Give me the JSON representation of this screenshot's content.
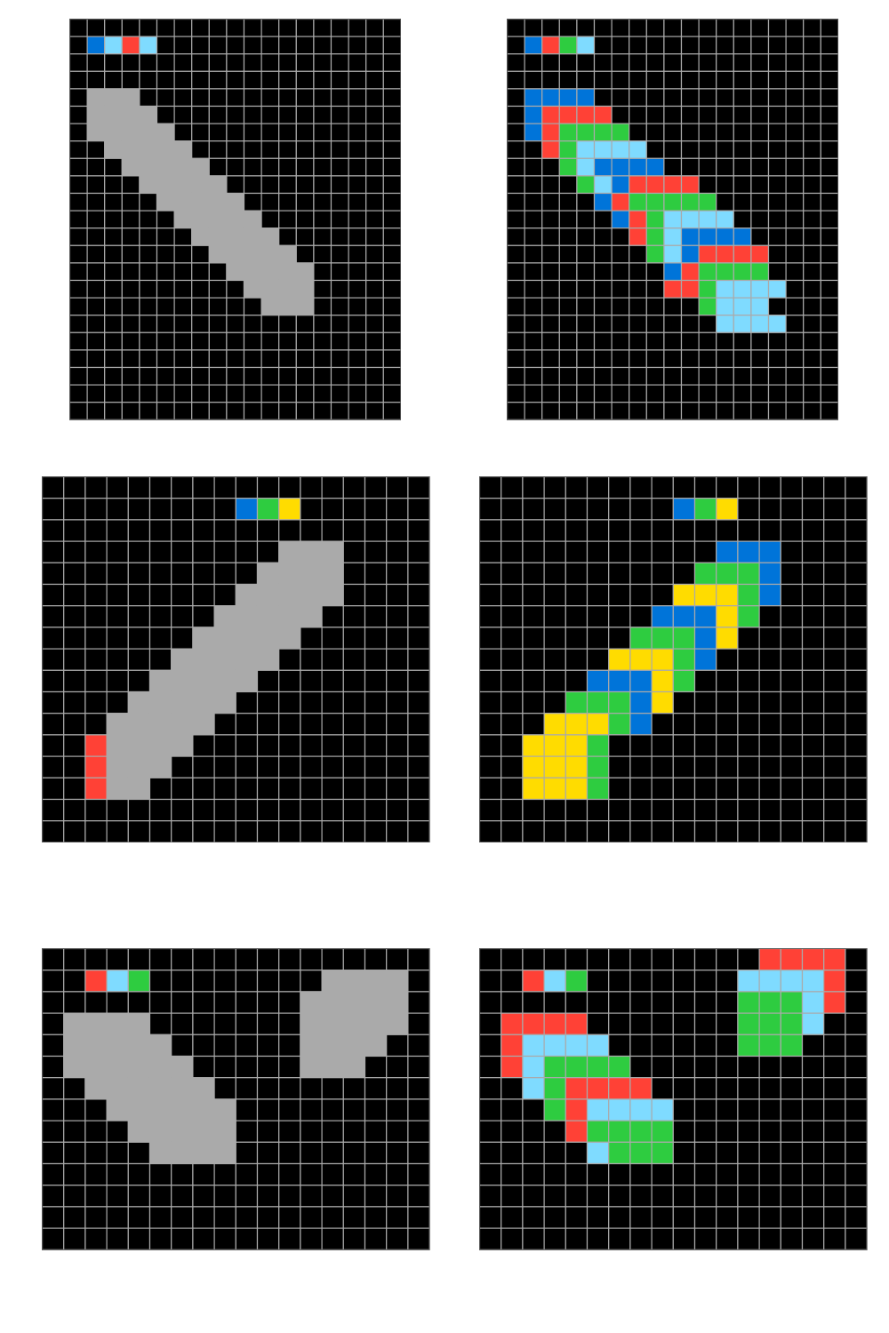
{
  "palette": {
    "0": "#000000",
    "1": "#0074d9",
    "2": "#ff4136",
    "3": "#2ecc40",
    "4": "#ffdc00",
    "5": "#aaaaaa",
    "6": "#f012be",
    "7": "#ff851b",
    "8": "#7fdbff",
    "9": "#870c25"
  },
  "grid_line_color": "#aaaaaa",
  "pairs": [
    {
      "input": {
        "rows": [
          "0000000000000000000",
          "0182800000000000000",
          "0000000000000000000",
          "0000000000000000000",
          "0555000000000000000",
          "0555500000000000000",
          "0555550000000000000",
          "0055555000000000000",
          "0005555500000000000",
          "0000555550000000000",
          "0000055555000000000",
          "0000005555500000000",
          "0000000555550000000",
          "0000000055555000000",
          "0000000005555500000",
          "0000000000555500000",
          "0000000000055500000",
          "0000000000000000000",
          "0000000000000000000",
          "0000000000000000000",
          "0000000000000000000",
          "0000000000000000000",
          "0000000000000000000"
        ]
      },
      "output": {
        "rows": [
          "0000000000000000000",
          "0123800000000000000",
          "0000000000000000000",
          "0000000000000000000",
          "0111100000000000000",
          "0122220000000000000",
          "0123333000000000000",
          "0023888800000000000",
          "0003811110000000000",
          "0000381222200000000",
          "0000012333330000000",
          "0000001238888000000",
          "0000000238111100000",
          "0000000038122220000",
          "0000000001233330000",
          "0000000002238888000",
          "0000000000038880000",
          "0000000000008888000",
          "0000000000000000000",
          "0000000000000000000",
          "0000000000000000000",
          "0000000000000000000",
          "0000000000000000000"
        ]
      }
    },
    {
      "input": {
        "rows": [
          "000000000000000000",
          "000000000134000000",
          "000000000000000000",
          "000000000005550000",
          "000000000055550000",
          "000000000555550000",
          "000000005555500000",
          "000000055555000000",
          "000000555550000000",
          "000005555500000000",
          "000055555000000000",
          "000555550000000000",
          "002555500000000000",
          "002555000000000000",
          "002550000000000000",
          "000000000000000000",
          "000000000000000000"
        ]
      },
      "output": {
        "rows": [
          "000000000000000000",
          "000000000134000000",
          "000000000000000000",
          "000000000001110000",
          "000000000033310000",
          "000000000444310000",
          "000000001114300000",
          "000000033314000000",
          "000000444310000000",
          "000001114300000000",
          "000033314000000000",
          "000444310000000000",
          "004443000000000000",
          "004443000000000000",
          "004443000000000000",
          "000000000000000000",
          "000000000000000000"
        ]
      }
    },
    {
      "input": {
        "rows": [
          "000000000000000000",
          "002830000000055550",
          "000000000000555550",
          "055550000000555550",
          "055555000000555500",
          "055555500000555000",
          "005555550000000000",
          "000555555000000000",
          "000055555000000000",
          "000005555000000000",
          "000000000000000000",
          "000000000000000000",
          "000000000000000000",
          "000000000000000000"
        ]
      },
      "output": {
        "rows": [
          "000000000000022220",
          "002830000000888820",
          "000000000000333820",
          "022220000000333800",
          "028888000000333000",
          "028333300000000000",
          "008322220000000000",
          "000328888000000000",
          "000023333000000000",
          "000008333000000000",
          "000000000000000000",
          "000000000000000000",
          "000000000000000000",
          "000000000000000000"
        ]
      }
    }
  ]
}
